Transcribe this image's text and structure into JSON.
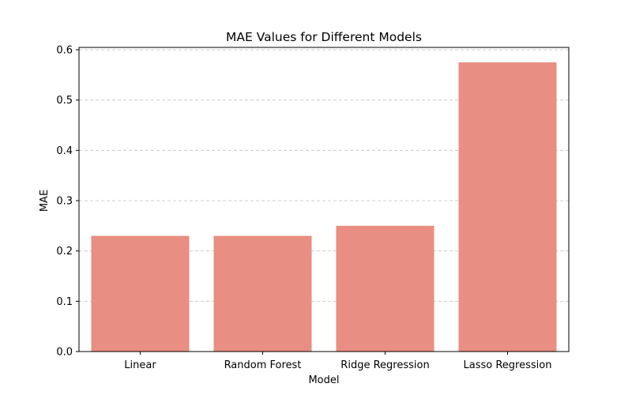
{
  "chart_data": {
    "type": "bar",
    "title": "MAE Values for Different Models",
    "xlabel": "Model",
    "ylabel": "MAE",
    "categories": [
      "Linear",
      "Random Forest",
      "Ridge Regression",
      "Lasso Regression"
    ],
    "values": [
      0.23,
      0.23,
      0.25,
      0.575
    ],
    "ylim": [
      0,
      0.6
    ],
    "yticks": [
      "0.0",
      "0.1",
      "0.2",
      "0.3",
      "0.4",
      "0.5",
      "0.6"
    ],
    "grid": "y-dashed",
    "bar_color": "#e88e82",
    "grid_color": "#cccccc"
  }
}
